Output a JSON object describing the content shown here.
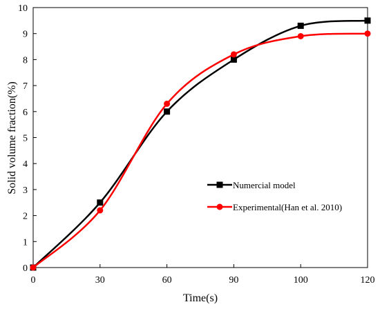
{
  "chart_data": {
    "type": "line",
    "xlabel": "Time(s)",
    "ylabel": "Solid volume fraction(%)",
    "categories": [
      "0",
      "30",
      "60",
      "90",
      "100",
      "120"
    ],
    "ylim": [
      0,
      10
    ],
    "yticks": [
      "0",
      "1",
      "2",
      "3",
      "4",
      "5",
      "6",
      "7",
      "8",
      "9",
      "10"
    ],
    "grid": false,
    "legend_position": "center-right",
    "series": [
      {
        "name": "Numercial model",
        "values": [
          0,
          2.5,
          6.0,
          8.0,
          9.3,
          9.5
        ],
        "color": "#000000",
        "marker": "square"
      },
      {
        "name": "Experimental(Han et al. 2010)",
        "values": [
          0,
          2.2,
          6.3,
          8.2,
          8.9,
          9.0
        ],
        "color": "#ff0000",
        "marker": "circle"
      }
    ]
  }
}
